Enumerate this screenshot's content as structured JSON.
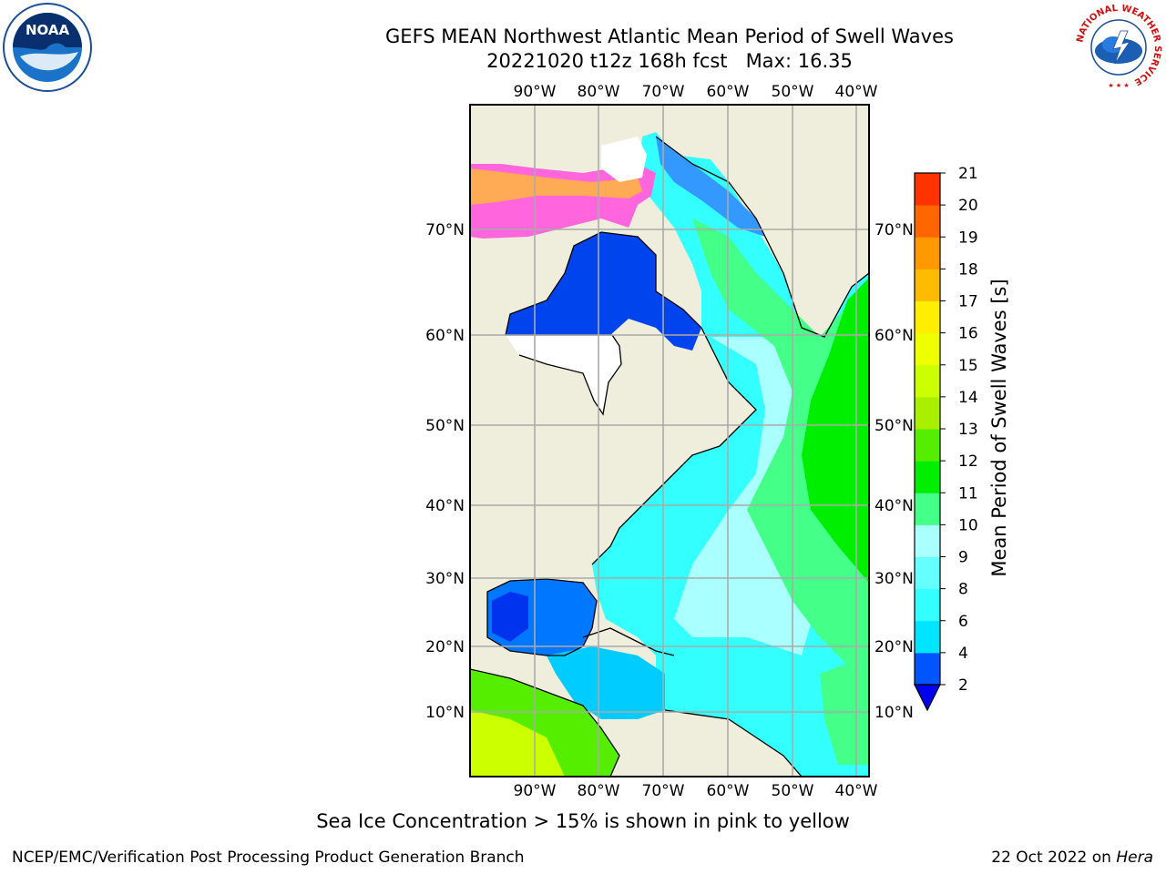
{
  "header": {
    "title": "GEFS MEAN Northwest Atlantic Mean Period of Swell Waves",
    "subtitle": "20221020 t12z 168h fcst   Max: 16.35"
  },
  "logos": {
    "left": "noaa-logo",
    "left_text": "NOAA",
    "left_ring_text": "NATIONAL OCEANIC AND ATMOSPHERIC ADMINISTRATION · U.S. DEPARTMENT OF COMMERCE",
    "right": "national-weather-service-logo",
    "right_ring_text": "NATIONAL WEATHER SERVICE"
  },
  "map": {
    "region": "Northwest Atlantic",
    "lon_ticks": [
      "90°W",
      "80°W",
      "70°W",
      "60°W",
      "50°W",
      "40°W"
    ],
    "lat_ticks": [
      "70°N",
      "60°N",
      "50°N",
      "40°N",
      "30°N",
      "20°N",
      "10°N"
    ],
    "lon_range": [
      -99,
      -37
    ],
    "lat_range": [
      2,
      81
    ],
    "grid": true,
    "land_color": "#efeedc",
    "ocean_fill": "swell period colormap"
  },
  "colorbar": {
    "label": "Mean Period of Swell Waves [s]",
    "ticks": [
      "2",
      "4",
      "6",
      "8",
      "9",
      "10",
      "11",
      "12",
      "13",
      "14",
      "15",
      "16",
      "17",
      "18",
      "19",
      "20",
      "21"
    ],
    "colors": [
      "#0055ff",
      "#00e5ff",
      "#33ffff",
      "#66ffff",
      "#aaffff",
      "#44ff88",
      "#00ee00",
      "#55ee00",
      "#aaee00",
      "#ccff00",
      "#eeff00",
      "#ffee00",
      "#ffbb00",
      "#ff9900",
      "#ff6600",
      "#ff3300"
    ],
    "under_color": "#0000ee",
    "extend": "min"
  },
  "footer": {
    "note": "Sea Ice Concentration > 15% is shown in pink to yellow",
    "credit": "NCEP/EMC/Verification Post Processing Product Generation Branch",
    "date": "22 Oct 2022 on",
    "host": "Hera"
  }
}
